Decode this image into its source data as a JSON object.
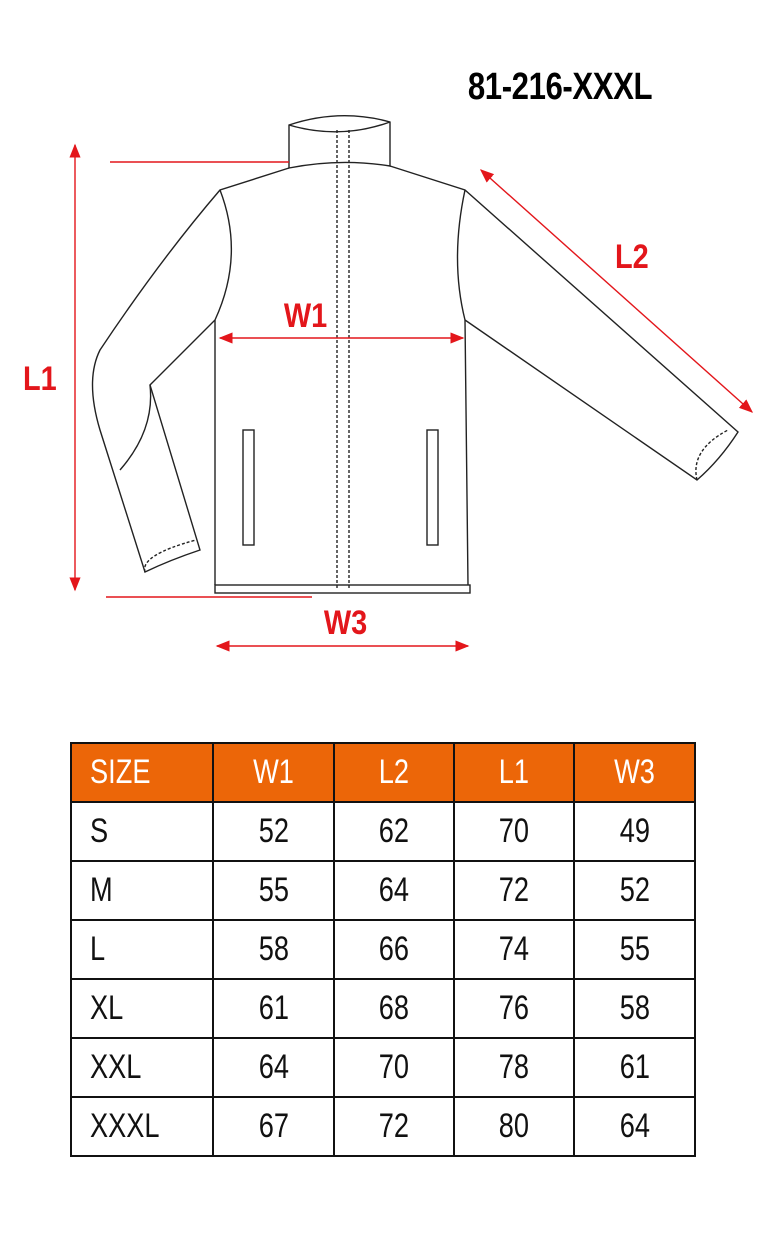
{
  "title": "81-216-XXXL",
  "colors": {
    "measure_red": "#e3161b",
    "header_orange": "#ec6608"
  },
  "labels": {
    "l1": "L1",
    "l2": "L2",
    "w1": "W1",
    "w3": "W3"
  },
  "table": {
    "headers": [
      "SIZE",
      "W1",
      "L2",
      "L1",
      "W3"
    ],
    "rows": [
      [
        "S",
        "52",
        "62",
        "70",
        "49"
      ],
      [
        "M",
        "55",
        "64",
        "72",
        "52"
      ],
      [
        "L",
        "58",
        "66",
        "74",
        "55"
      ],
      [
        "XL",
        "61",
        "68",
        "76",
        "58"
      ],
      [
        "XXL",
        "64",
        "70",
        "78",
        "61"
      ],
      [
        "XXXL",
        "67",
        "72",
        "80",
        "64"
      ]
    ]
  }
}
